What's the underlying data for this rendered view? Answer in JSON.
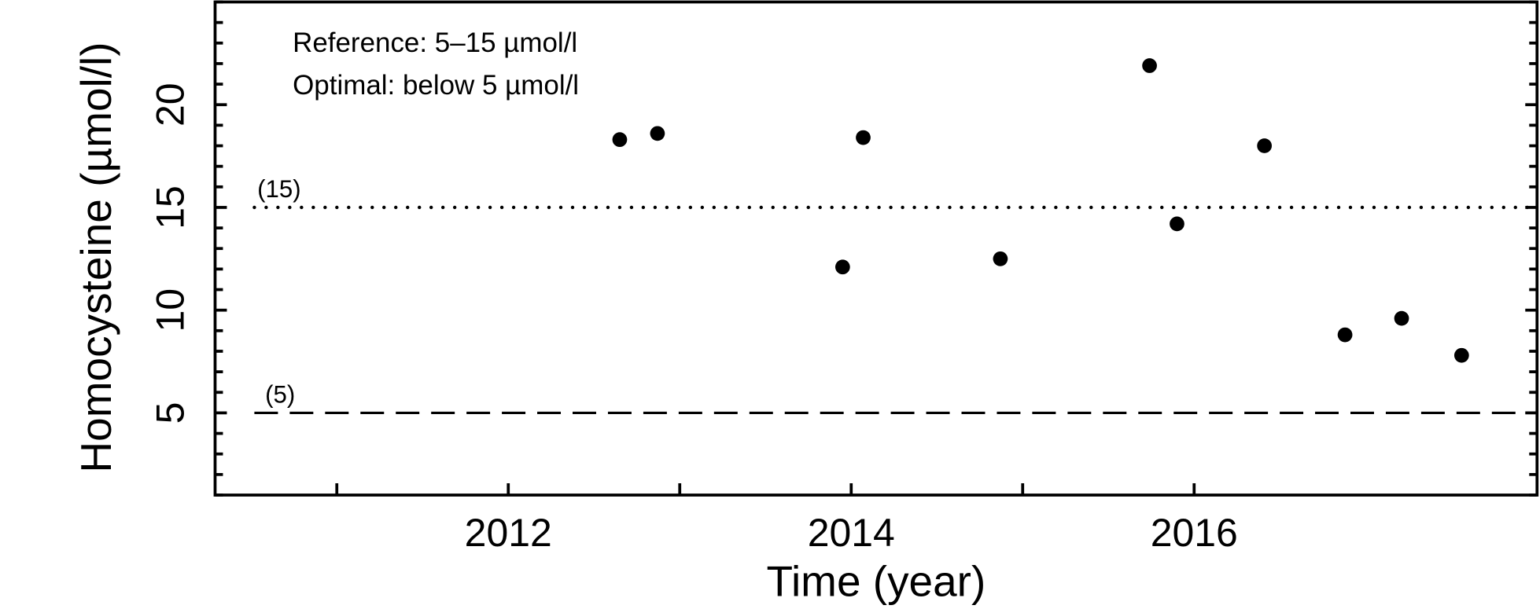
{
  "chart_data": {
    "type": "scatter",
    "title": "",
    "xlabel": "Time (year)",
    "ylabel": "Homocysteine (µmol/l)",
    "xlim": [
      2010.29,
      2018.0
    ],
    "ylim": [
      1.0,
      25.0
    ],
    "x_ticks": [
      2011,
      2012,
      2013,
      2014,
      2015,
      2016
    ],
    "x_tick_labels": [
      "2012",
      "2014",
      "2016"
    ],
    "x_tick_label_values": [
      2012,
      2014,
      2016
    ],
    "y_tick_labels": [
      "5",
      "10",
      "15",
      "20"
    ],
    "y_tick_label_values": [
      5,
      10,
      15,
      20
    ],
    "y_minor_ticks_range": [
      1,
      25
    ],
    "grid": false,
    "points": [
      {
        "x": 2012.65,
        "y": 18.3
      },
      {
        "x": 2012.87,
        "y": 18.6
      },
      {
        "x": 2013.95,
        "y": 12.1
      },
      {
        "x": 2014.07,
        "y": 18.4
      },
      {
        "x": 2014.87,
        "y": 12.5
      },
      {
        "x": 2015.74,
        "y": 21.9
      },
      {
        "x": 2015.9,
        "y": 14.2
      },
      {
        "x": 2016.41,
        "y": 18.0
      },
      {
        "x": 2016.88,
        "y": 8.8
      },
      {
        "x": 2017.21,
        "y": 9.6
      },
      {
        "x": 2017.56,
        "y": 7.8
      }
    ],
    "reference_lines": [
      {
        "y": 15,
        "label": "(15)",
        "style": "dotted"
      },
      {
        "y": 5,
        "label": "(5)",
        "style": "dashed"
      }
    ],
    "annotations": [
      "Reference: 5–15 µmol/l",
      "Optimal: below 5 µmol/l"
    ],
    "marker_color": "#000000"
  }
}
